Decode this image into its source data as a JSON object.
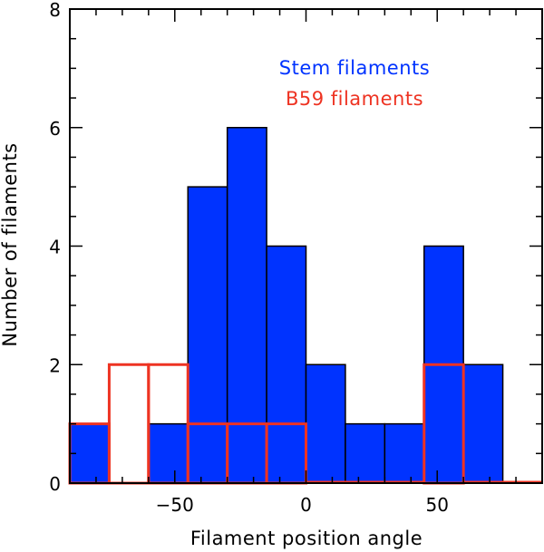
{
  "chart_data": {
    "type": "histogram",
    "title": "",
    "xlabel": "Filament position angle",
    "ylabel": "Number of filaments",
    "xlim": [
      -90,
      90
    ],
    "ylim": [
      0,
      8
    ],
    "xticks": [
      -50,
      0,
      50
    ],
    "yticks": [
      0,
      2,
      4,
      6,
      8
    ],
    "grid": false,
    "legend_position": "top-right",
    "series": [
      {
        "name": "Stem filaments",
        "style": "filled",
        "color": "#0033ff",
        "bins": [
          {
            "x0": -90,
            "x1": -75,
            "count": 1
          },
          {
            "x0": -75,
            "x1": -60,
            "count": 0
          },
          {
            "x0": -60,
            "x1": -45,
            "count": 1
          },
          {
            "x0": -45,
            "x1": -30,
            "count": 5
          },
          {
            "x0": -30,
            "x1": -15,
            "count": 6
          },
          {
            "x0": -15,
            "x1": 0,
            "count": 4
          },
          {
            "x0": 0,
            "x1": 15,
            "count": 2
          },
          {
            "x0": 15,
            "x1": 30,
            "count": 1
          },
          {
            "x0": 30,
            "x1": 45,
            "count": 1
          },
          {
            "x0": 45,
            "x1": 60,
            "count": 4
          },
          {
            "x0": 60,
            "x1": 75,
            "count": 2
          },
          {
            "x0": 75,
            "x1": 90,
            "count": 0
          }
        ]
      },
      {
        "name": "B59 filaments",
        "style": "outline",
        "color": "#ee3322",
        "bins": [
          {
            "x0": -90,
            "x1": -75,
            "count": 1
          },
          {
            "x0": -75,
            "x1": -60,
            "count": 2
          },
          {
            "x0": -60,
            "x1": -45,
            "count": 2
          },
          {
            "x0": -45,
            "x1": -30,
            "count": 1
          },
          {
            "x0": -30,
            "x1": -15,
            "count": 1
          },
          {
            "x0": -15,
            "x1": 0,
            "count": 1
          },
          {
            "x0": 0,
            "x1": 15,
            "count": 0
          },
          {
            "x0": 15,
            "x1": 30,
            "count": 0
          },
          {
            "x0": 30,
            "x1": 45,
            "count": 0
          },
          {
            "x0": 45,
            "x1": 60,
            "count": 2
          },
          {
            "x0": 60,
            "x1": 75,
            "count": 0
          },
          {
            "x0": 75,
            "x1": 90,
            "count": 0
          }
        ]
      }
    ]
  }
}
